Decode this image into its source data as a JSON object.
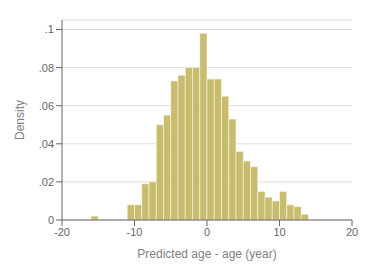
{
  "chart_data": {
    "type": "histogram",
    "x_label": "Predicted age - age (year)",
    "y_label": "Density",
    "bins": [
      -16,
      -15,
      -14,
      -13,
      -12,
      -11,
      -10,
      -9,
      -8,
      -7,
      -6,
      -5,
      -4,
      -3,
      -2,
      -1,
      0,
      1,
      2,
      3,
      4,
      5,
      6,
      7,
      8,
      9,
      10,
      11,
      12,
      13,
      14
    ],
    "values": [
      0.002,
      0.0,
      0.0,
      0.0,
      0.0,
      0.008,
      0.008,
      0.019,
      0.02,
      0.05,
      0.055,
      0.073,
      0.076,
      0.08,
      0.08,
      0.098,
      0.074,
      0.074,
      0.065,
      0.053,
      0.036,
      0.031,
      0.028,
      0.015,
      0.012,
      0.01,
      0.015,
      0.008,
      0.007,
      0.003
    ],
    "color": "#c8bc6e",
    "xlim": [
      -20,
      20
    ],
    "ylim": [
      0,
      0.105
    ],
    "xticks": [
      -20,
      -10,
      0,
      10,
      20
    ],
    "yticks": [
      0,
      {
        "value": 0.02,
        "label": ".02"
      },
      {
        "value": 0.04,
        "label": ".04"
      },
      {
        "value": 0.06,
        "label": ".06"
      },
      {
        "value": 0.08,
        "label": ".08"
      },
      {
        "value": 0.1,
        "label": ".1"
      }
    ],
    "grid": true
  }
}
